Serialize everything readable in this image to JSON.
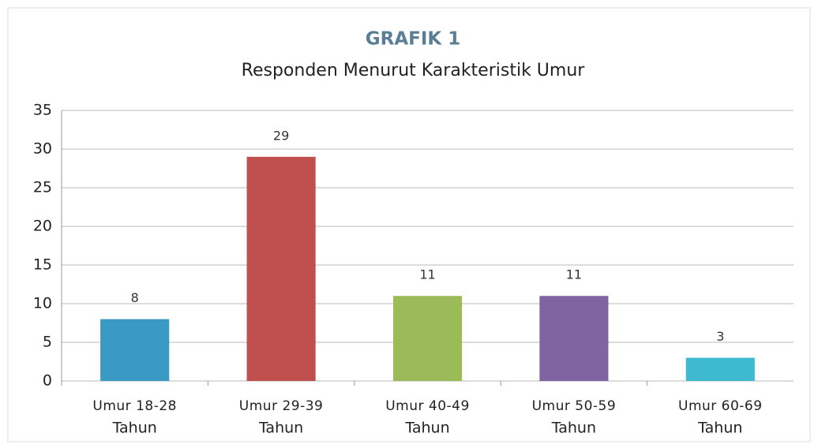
{
  "chart_data": {
    "type": "bar",
    "title": "GRAFIK 1",
    "subtitle": "Responden Menurut Karakteristik Umur",
    "categories": [
      [
        "Umur 18-28",
        "Tahun"
      ],
      [
        "Umur 29-39",
        "Tahun"
      ],
      [
        "Umur 40-49",
        "Tahun"
      ],
      [
        "Umur 50-59",
        "Tahun"
      ],
      [
        "Umur 60-69",
        "Tahun"
      ]
    ],
    "values": [
      8,
      29,
      11,
      11,
      3
    ],
    "colors": [
      "#3a9ac4",
      "#c0504d",
      "#9bbb59",
      "#8064a2",
      "#3dbad0"
    ],
    "ylim": [
      0,
      35
    ],
    "yticks": [
      0,
      5,
      10,
      15,
      20,
      25,
      30,
      35
    ],
    "grid": true
  }
}
